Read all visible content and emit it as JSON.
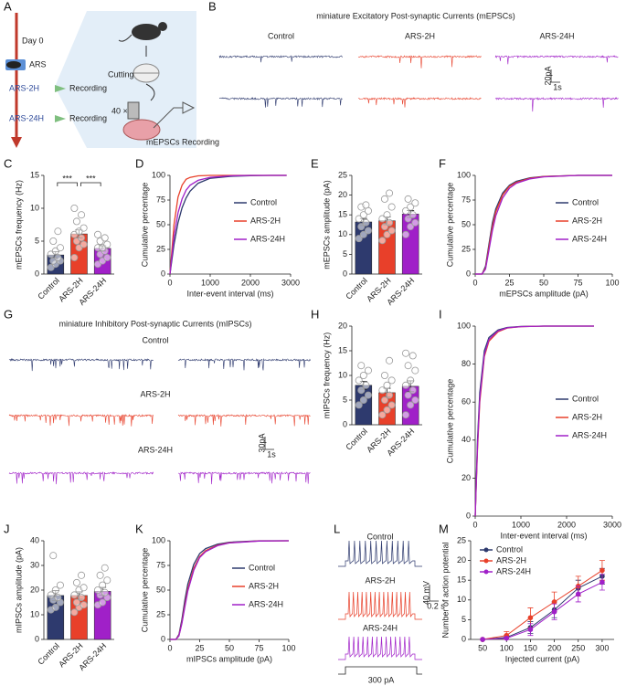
{
  "diagram": {
    "letter": "A",
    "day0": "Day 0",
    "stress": "ARS",
    "time_points": [
      "ARS-2H",
      "ARS-24H"
    ],
    "recording": "Recording",
    "cutting": "Cutting",
    "magnification": "40 ×",
    "method": "mEPSCs Recording"
  },
  "recordings": [
    {
      "letter": "B",
      "title": "miniature Excitatory Post-synaptic Currents (mEPSCs)",
      "groups": [
        "Control",
        "ARS-2H",
        "ARS-24H"
      ],
      "colors": [
        "#2e3a6e",
        "#e8402a",
        "#a020c8"
      ],
      "scale_y": "20pA",
      "scale_x": "1s"
    },
    {
      "letter": "G",
      "title": "miniature Inhibitory Post-synaptic Currents (mIPSCs)",
      "groups": [
        "Control",
        "ARS-2H",
        "ARS-24H"
      ],
      "colors": [
        "#2e3a6e",
        "#e8402a",
        "#a020c8"
      ],
      "scale_y": "30pA",
      "scale_x": "1s"
    },
    {
      "letter": "L",
      "groups": [
        "Control",
        "ARS-2H",
        "ARS-24H"
      ],
      "colors": [
        "#2e3a6e",
        "#e8402a",
        "#a020c8"
      ],
      "scale_y": "40 mV",
      "scale_x": "0.2 s",
      "stimulus": "300 pA"
    }
  ],
  "chart_data": [
    {
      "type": "bar",
      "letter": "C",
      "ylabel": "mEPSCs frequency (Hz)",
      "categories": [
        "Control",
        "ARS-2H",
        "ARS-24H"
      ],
      "values": [
        2.9,
        6.1,
        3.9
      ],
      "errors": [
        0.5,
        0.6,
        0.4
      ],
      "colors": [
        "#2e3a6e",
        "#e8402a",
        "#a020c8"
      ],
      "ylim": [
        0,
        15
      ],
      "yticks": [
        0,
        5,
        10,
        15
      ],
      "points": [
        [
          1,
          1.5,
          2,
          2,
          2.5,
          3,
          3.5,
          4,
          5,
          6.5
        ],
        [
          2.5,
          4,
          4.5,
          5,
          5.5,
          6,
          6.5,
          7,
          8,
          9,
          10
        ],
        [
          1.5,
          2,
          2.5,
          3,
          3.5,
          4,
          4,
          4.5,
          5,
          5.5,
          6
        ]
      ],
      "significance": [
        {
          "label": "***",
          "from": "Control",
          "to": "ARS-2H"
        },
        {
          "label": "***",
          "from": "ARS-2H",
          "to": "ARS-24H"
        }
      ]
    },
    {
      "type": "line",
      "letter": "D",
      "xlabel": "Inter-event interval (ms)",
      "ylabel": "Cumulative percentage",
      "legend": "right",
      "x": [
        0,
        100,
        200,
        300,
        400,
        500,
        700,
        1000,
        1500,
        2000,
        2500,
        2900
      ],
      "series": [
        {
          "name": "Control",
          "color": "#2e3a6e",
          "values": [
            0,
            30,
            52,
            67,
            77,
            84,
            92,
            97,
            99,
            99.6,
            100,
            100
          ]
        },
        {
          "name": "ARS-2H",
          "color": "#e8402a",
          "values": [
            0,
            50,
            78,
            90,
            96,
            98,
            99.5,
            100,
            100,
            100,
            100,
            100
          ]
        },
        {
          "name": "ARS-24H",
          "color": "#a020c8",
          "values": [
            0,
            38,
            62,
            76,
            85,
            90,
            95,
            98,
            99.5,
            100,
            100,
            100
          ]
        }
      ],
      "xlim": [
        0,
        3000
      ],
      "xticks": [
        0,
        1000,
        2000,
        3000
      ],
      "ylim": [
        0,
        100
      ],
      "yticks": [
        0,
        25,
        50,
        75,
        100
      ]
    },
    {
      "type": "bar",
      "letter": "E",
      "ylabel": "mEPSCs amplitude (pA)",
      "categories": [
        "Control",
        "ARS-2H",
        "ARS-24H"
      ],
      "values": [
        13.2,
        13.5,
        15.2
      ],
      "errors": [
        0.9,
        1.0,
        0.9
      ],
      "colors": [
        "#2e3a6e",
        "#e8402a",
        "#a020c8"
      ],
      "ylim": [
        0,
        25
      ],
      "yticks": [
        0,
        5,
        10,
        15,
        20,
        25
      ],
      "points": [
        [
          9,
          10,
          11,
          12,
          13,
          14,
          15,
          16,
          17,
          17.5
        ],
        [
          8.5,
          10,
          11,
          12,
          13,
          14,
          15,
          17,
          19,
          20.5
        ],
        [
          10,
          12,
          13,
          14,
          15,
          16,
          17,
          18,
          19
        ]
      ]
    },
    {
      "type": "line",
      "letter": "F",
      "xlabel": "mEPSCs amplitude (pA)",
      "ylabel": "Cumulative percentage",
      "legend": "right",
      "x": [
        0,
        5,
        7.5,
        10,
        12.5,
        15,
        20,
        25,
        30,
        40,
        50,
        75,
        100
      ],
      "series": [
        {
          "name": "Control",
          "color": "#2e3a6e",
          "values": [
            0,
            0,
            8,
            30,
            52,
            66,
            82,
            90,
            94,
            97.5,
            99,
            100,
            100
          ]
        },
        {
          "name": "ARS-2H",
          "color": "#e8402a",
          "values": [
            0,
            0,
            6,
            27,
            48,
            63,
            80,
            89,
            93,
            97,
            98.8,
            100,
            100
          ]
        },
        {
          "name": "ARS-24H",
          "color": "#a020c8",
          "values": [
            0,
            0,
            5,
            24,
            44,
            59,
            77,
            87,
            92,
            96.5,
            98.5,
            100,
            100
          ]
        }
      ],
      "xlim": [
        0,
        100
      ],
      "xticks": [
        0,
        25,
        50,
        75,
        100
      ],
      "ylim": [
        0,
        100
      ],
      "yticks": [
        0,
        25,
        50,
        75,
        100
      ]
    },
    {
      "type": "bar",
      "letter": "H",
      "ylabel": "mIPSCs frequency (Hz)",
      "categories": [
        "Control",
        "ARS-2H",
        "ARS-24H"
      ],
      "values": [
        8.0,
        6.5,
        7.8
      ],
      "errors": [
        0.8,
        0.9,
        1.1
      ],
      "colors": [
        "#2e3a6e",
        "#e8402a",
        "#a020c8"
      ],
      "ylim": [
        0,
        20
      ],
      "yticks": [
        0,
        5,
        10,
        15,
        20
      ],
      "points": [
        [
          4,
          5,
          6,
          7,
          8,
          9,
          10,
          11,
          12
        ],
        [
          2,
          3,
          4,
          5,
          6,
          7,
          8,
          9,
          10,
          13
        ],
        [
          2,
          4,
          5,
          6,
          7,
          8,
          9,
          11,
          12,
          14,
          14.5
        ]
      ]
    },
    {
      "type": "line",
      "letter": "I",
      "xlabel": "Inter-event interval (ms)",
      "ylabel": "Cumulative percentage",
      "legend": "right",
      "x": [
        0,
        50,
        100,
        200,
        300,
        500,
        700,
        1000,
        1500,
        2000,
        2600
      ],
      "series": [
        {
          "name": "Control",
          "color": "#2e3a6e",
          "values": [
            0,
            40,
            65,
            87,
            94,
            98,
            99.3,
            99.8,
            100,
            100,
            100
          ]
        },
        {
          "name": "ARS-2H",
          "color": "#e8402a",
          "values": [
            0,
            35,
            60,
            84,
            92,
            97,
            99,
            99.7,
            100,
            100,
            100
          ]
        },
        {
          "name": "ARS-24H",
          "color": "#a020c8",
          "values": [
            0,
            37,
            62,
            85,
            93,
            97.5,
            99.1,
            99.7,
            100,
            100,
            100
          ]
        }
      ],
      "xlim": [
        0,
        3000
      ],
      "xticks": [
        0,
        1000,
        2000,
        3000
      ],
      "ylim": [
        0,
        100
      ],
      "yticks": [
        0,
        20,
        40,
        60,
        80,
        100
      ]
    },
    {
      "type": "bar",
      "letter": "J",
      "ylabel": "mIPSCs amplitude (pA)",
      "categories": [
        "Control",
        "ARS-2H",
        "ARS-24H"
      ],
      "values": [
        17.8,
        17.8,
        19.5
      ],
      "errors": [
        2.0,
        1.5,
        1.6
      ],
      "colors": [
        "#2e3a6e",
        "#e8402a",
        "#a020c8"
      ],
      "ylim": [
        0,
        40
      ],
      "yticks": [
        0,
        10,
        20,
        30,
        40
      ],
      "points": [
        [
          12,
          13,
          15,
          16,
          17,
          18,
          20,
          22,
          34
        ],
        [
          11,
          13,
          14,
          15,
          17,
          18,
          20,
          21,
          23,
          26
        ],
        [
          14,
          15,
          17,
          18,
          19,
          20,
          22,
          24,
          26,
          29
        ]
      ]
    },
    {
      "type": "line",
      "letter": "K",
      "xlabel": "mIPSCs amplitude (pA)",
      "ylabel": "Cumulative percentage",
      "legend": "right",
      "x": [
        0,
        5,
        7.5,
        10,
        12.5,
        15,
        20,
        25,
        30,
        40,
        50,
        75,
        100
      ],
      "series": [
        {
          "name": "Control",
          "color": "#2e3a6e",
          "values": [
            0,
            0,
            5,
            20,
            40,
            56,
            76,
            87,
            92,
            96.5,
            98.5,
            100,
            100
          ]
        },
        {
          "name": "ARS-2H",
          "color": "#e8402a",
          "values": [
            0,
            0,
            4,
            17,
            35,
            51,
            72,
            84,
            90,
            95.5,
            98,
            99.8,
            100
          ]
        },
        {
          "name": "ARS-24H",
          "color": "#a020c8",
          "values": [
            0,
            0,
            3.5,
            16,
            33,
            49,
            70,
            83,
            89,
            95,
            97.8,
            99.7,
            100
          ]
        }
      ],
      "xlim": [
        0,
        100
      ],
      "xticks": [
        0,
        25,
        50,
        75,
        100
      ],
      "ylim": [
        0,
        100
      ],
      "yticks": [
        0,
        25,
        50,
        75,
        100
      ]
    },
    {
      "type": "line",
      "letter": "M",
      "xlabel": "Injected current (pA)",
      "ylabel": "Number of action potential",
      "legend": "upper left",
      "x": [
        50,
        100,
        150,
        200,
        250,
        300
      ],
      "series": [
        {
          "name": "Control",
          "color": "#2e3a6e",
          "values": [
            0,
            0.5,
            3,
            7.5,
            13,
            16
          ],
          "errors": [
            0,
            0.5,
            1.5,
            2,
            2,
            2
          ]
        },
        {
          "name": "ARS-2H",
          "color": "#e8402a",
          "values": [
            0,
            1,
            5.5,
            9.5,
            13.5,
            17.5
          ],
          "errors": [
            0,
            1,
            2.5,
            2.5,
            2.5,
            2.5
          ]
        },
        {
          "name": "ARS-24H",
          "color": "#a020c8",
          "values": [
            0,
            0.3,
            2.5,
            7,
            11.5,
            14.5
          ],
          "errors": [
            0,
            0.3,
            1.5,
            2,
            2,
            2
          ]
        }
      ],
      "xlim": [
        25,
        325
      ],
      "xticks": [
        50,
        100,
        150,
        200,
        250,
        300
      ],
      "ylim": [
        0,
        25
      ],
      "yticks": [
        0,
        5,
        10,
        15,
        20,
        25
      ]
    }
  ]
}
